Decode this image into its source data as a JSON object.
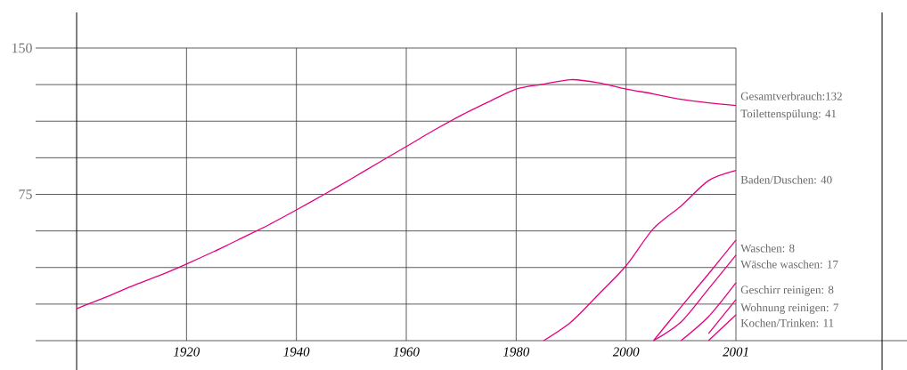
{
  "chart_data": {
    "type": "line",
    "categories": [
      null,
      null,
      null,
      null,
      "1920",
      null,
      null,
      null,
      "1940",
      null,
      null,
      null,
      "1960",
      null,
      null,
      null,
      "1980",
      null,
      null,
      null,
      "2000",
      null,
      null,
      null,
      "2001"
    ],
    "series": [
      {
        "color": "#e6007e",
        "values": [
          16.4,
          21.9,
          27.9,
          33.3,
          39.3,
          45.7,
          52.5,
          59.4,
          67,
          74.9,
          83,
          91.3,
          99.5,
          107.8,
          115.5,
          122.4,
          129,
          131.5,
          133.8,
          132.2,
          129,
          126.5,
          123.7,
          121.9,
          120.5
        ]
      },
      {
        "color": "#e6007e",
        "values": [
          null,
          null,
          null,
          null,
          null,
          null,
          null,
          null,
          null,
          null,
          null,
          null,
          null,
          null,
          null,
          null,
          null,
          0,
          9.6,
          23.7,
          38.4,
          57.5,
          69,
          82,
          87.2
        ]
      },
      {
        "color": "#e6007e",
        "values": [
          null,
          null,
          null,
          null,
          null,
          null,
          null,
          null,
          null,
          null,
          null,
          null,
          null,
          null,
          null,
          null,
          null,
          null,
          null,
          null,
          null,
          0,
          17.3,
          34.2,
          51.6
        ]
      },
      {
        "color": "#e6007e",
        "values": [
          null,
          null,
          null,
          null,
          null,
          null,
          null,
          null,
          null,
          null,
          null,
          null,
          null,
          null,
          null,
          null,
          null,
          null,
          null,
          null,
          null,
          0,
          9.6,
          26.5,
          43.8
        ]
      },
      {
        "color": "#e6007e",
        "values": [
          null,
          null,
          null,
          null,
          null,
          null,
          null,
          null,
          null,
          null,
          null,
          null,
          null,
          null,
          null,
          null,
          null,
          null,
          null,
          null,
          null,
          null,
          0,
          12.3,
          29.7
        ]
      },
      {
        "color": "#e6007e",
        "values": [
          null,
          null,
          null,
          null,
          null,
          null,
          null,
          null,
          null,
          null,
          null,
          null,
          null,
          null,
          null,
          null,
          null,
          null,
          null,
          null,
          null,
          null,
          null,
          3.6,
          21
        ]
      },
      {
        "color": "#e6007e",
        "values": [
          null,
          null,
          null,
          null,
          null,
          null,
          null,
          null,
          null,
          null,
          null,
          null,
          null,
          null,
          null,
          null,
          null,
          null,
          null,
          null,
          null,
          null,
          null,
          0,
          13.2
        ]
      }
    ],
    "ylim": [
      0,
      150
    ],
    "yticks": [
      {
        "value": 0,
        "label": null
      },
      {
        "value": 18.75,
        "label": null
      },
      {
        "value": 37.5,
        "label": null
      },
      {
        "value": 56.25,
        "label": null
      },
      75,
      {
        "value": 93.75,
        "label": null
      },
      {
        "value": 112.5,
        "label": null
      },
      {
        "value": 131.25,
        "label": null
      },
      150
    ],
    "grid": true,
    "annotations": [
      "Gesamtverbrauch:132",
      "Toilettenspülung: 41",
      "Baden/Duschen: 40",
      "Waschen: 8",
      "Wäsche waschen: 17",
      "Geschirr reinigen: 8",
      "Wohnung reinigen: 7",
      "Kochen/Trinken: 11"
    ]
  }
}
